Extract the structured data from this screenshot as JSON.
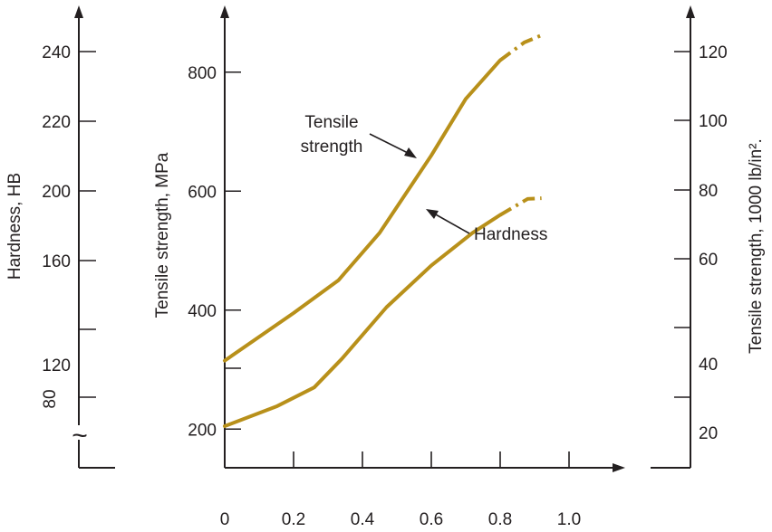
{
  "chart_data": {
    "type": "line",
    "series_color": "#b8901a",
    "x": {
      "ticks": [
        0,
        0.2,
        0.4,
        0.6,
        0.8,
        1.0
      ],
      "tick_labels": [
        "0",
        "0.2",
        "0.4",
        "0.6",
        "0.8",
        "1.0"
      ],
      "range": [
        0,
        1.2
      ]
    },
    "y_left_hardness": {
      "label": "Hardness, HB",
      "tick_labels": [
        "240",
        "220",
        "200",
        "160",
        "",
        "120",
        "80"
      ],
      "break_symbol": "~"
    },
    "y_mid_tensile_mpa": {
      "label": "Tensile strength, MPa",
      "ticks": [
        200,
        400,
        600,
        800
      ],
      "tick_labels": [
        "200",
        "400",
        "600",
        "800"
      ],
      "range": [
        135,
        900
      ]
    },
    "y_right_tensile_ksi": {
      "label": "Tensile strength, 1000 lb/in².",
      "tick_labels": [
        "120",
        "100",
        "80",
        "60",
        "40",
        "20"
      ]
    },
    "series": [
      {
        "name": "Tensile strength",
        "label_lines": [
          "Tensile",
          "strength"
        ],
        "unit": "MPa",
        "solid": [
          [
            0,
            315
          ],
          [
            0.2,
            395
          ],
          [
            0.33,
            450
          ],
          [
            0.45,
            530
          ],
          [
            0.6,
            660
          ],
          [
            0.7,
            755
          ],
          [
            0.8,
            820
          ]
        ],
        "dashed": [
          [
            0.8,
            820
          ],
          [
            0.87,
            850
          ],
          [
            0.92,
            862
          ]
        ]
      },
      {
        "name": "Hardness",
        "label_lines": [
          "Hardness"
        ],
        "unit": "MPa",
        "solid": [
          [
            0,
            205
          ],
          [
            0.15,
            238
          ],
          [
            0.26,
            270
          ],
          [
            0.34,
            318
          ],
          [
            0.47,
            405
          ],
          [
            0.6,
            475
          ],
          [
            0.72,
            530
          ],
          [
            0.8,
            560
          ]
        ],
        "dashed": [
          [
            0.8,
            560
          ],
          [
            0.88,
            587
          ],
          [
            0.92,
            588
          ]
        ]
      }
    ]
  }
}
